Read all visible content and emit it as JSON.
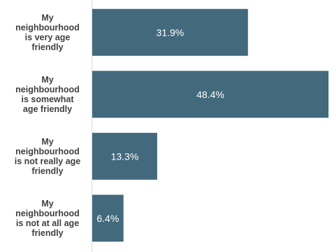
{
  "chart_data": {
    "type": "bar",
    "orientation": "horizontal",
    "categories": [
      "My neighbourhood is very age friendly",
      "My neighbourhood is somewhat age friendly",
      "My neighbourhood is not really age friendly",
      "My neighbourhood is not at all age friendly"
    ],
    "category_lines": [
      [
        "My",
        "neighbourhood",
        "is very age",
        "friendly"
      ],
      [
        "My",
        "neighbourhood",
        "is somewhat",
        "age friendly"
      ],
      [
        "My",
        "neighbourhood",
        "is not really age",
        "friendly"
      ],
      [
        "My",
        "neighbourhood",
        "is not at all age",
        "friendly"
      ]
    ],
    "values": [
      31.9,
      48.4,
      13.3,
      6.4
    ],
    "value_labels": [
      "31.9%",
      "48.4%",
      "13.3%",
      "6.4%"
    ],
    "xlim": [
      0,
      48.4
    ],
    "grid": false,
    "bar_color": "#43697d",
    "axis_color": "#d9d9d9",
    "label_color": "#404040",
    "value_label_color": "#ffffff"
  }
}
